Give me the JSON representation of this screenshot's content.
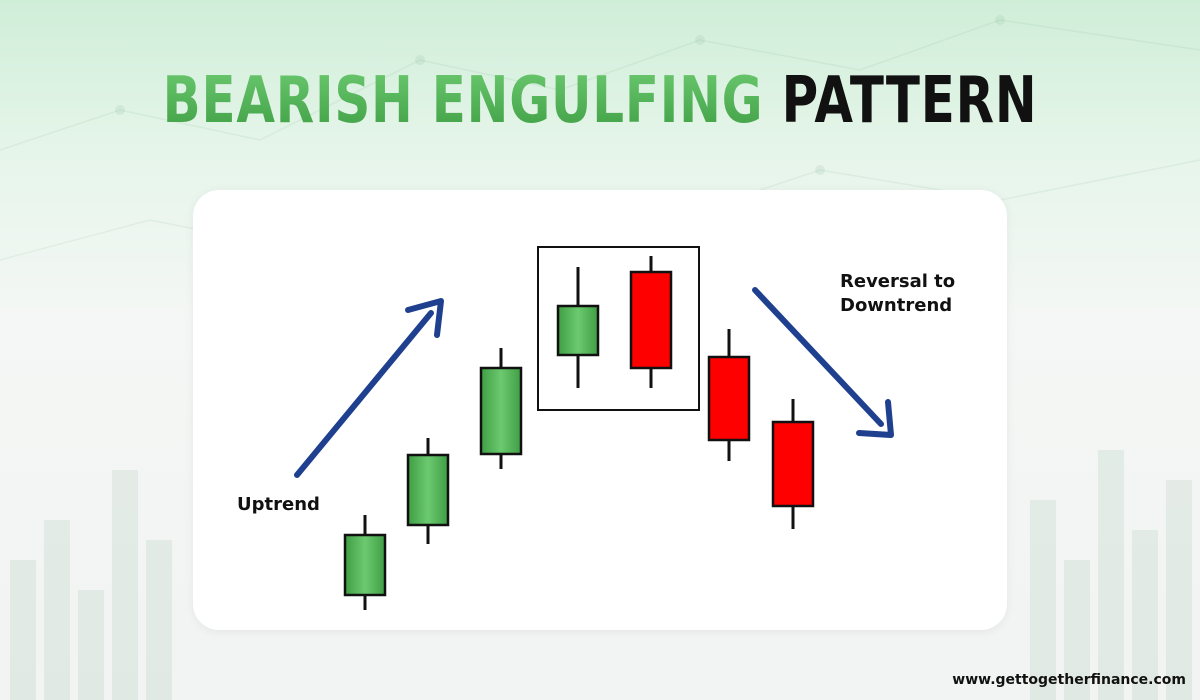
{
  "title": {
    "part1": "BEARISH ENGULFING",
    "part2": "PATTERN"
  },
  "labels": {
    "uptrend": "Uptrend",
    "reversal": "Reversal to\nDowntrend"
  },
  "footer": {
    "website": "www.gettogetherfinance.com"
  },
  "colors": {
    "bullish": "#4caf50",
    "bearish": "#ff0000",
    "arrow": "#1f3f8f",
    "title_green": "#4caf50",
    "title_black": "#111111"
  },
  "candles": [
    {
      "type": "bullish",
      "open": 15,
      "close": 75,
      "high": 95,
      "low": 0
    },
    {
      "type": "bullish",
      "open": 85,
      "close": 155,
      "high": 172,
      "low": 66
    },
    {
      "type": "bullish",
      "open": 156,
      "close": 242,
      "high": 262,
      "low": 141
    },
    {
      "type": "bullish",
      "open": 255,
      "close": 304,
      "high": 343,
      "low": 222,
      "highlighted": true
    },
    {
      "type": "bearish",
      "open": 338,
      "close": 242,
      "high": 354,
      "low": 222,
      "highlighted": true
    },
    {
      "type": "bearish",
      "open": 253,
      "close": 170,
      "high": 281,
      "low": 149
    },
    {
      "type": "bearish",
      "open": 188,
      "close": 104,
      "high": 211,
      "low": 81
    }
  ],
  "arrows": [
    {
      "name": "uptrend-arrow",
      "direction": "up"
    },
    {
      "name": "downtrend-arrow",
      "direction": "down"
    }
  ]
}
